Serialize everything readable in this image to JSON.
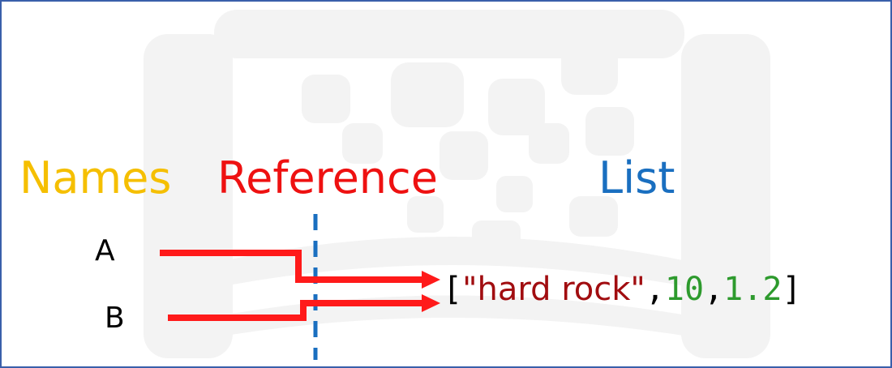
{
  "headings": {
    "names": "Names",
    "reference": "Reference",
    "list": "List"
  },
  "variables": [
    "A",
    "B"
  ],
  "list_literal": {
    "open": "[",
    "item1": "\"hard rock\"",
    "sep1": ",",
    "item2": "10",
    "sep2": ",",
    "item3": "1.2",
    "close": "]"
  },
  "colors": {
    "names": "#f5bf00",
    "reference": "#ee1111",
    "list": "#1a6fc0",
    "arrow": "#ff1a1a",
    "divider": "#1a6fc0",
    "string": "#a10d10",
    "number": "#2d9a2d",
    "frame": "#3a5faa"
  }
}
